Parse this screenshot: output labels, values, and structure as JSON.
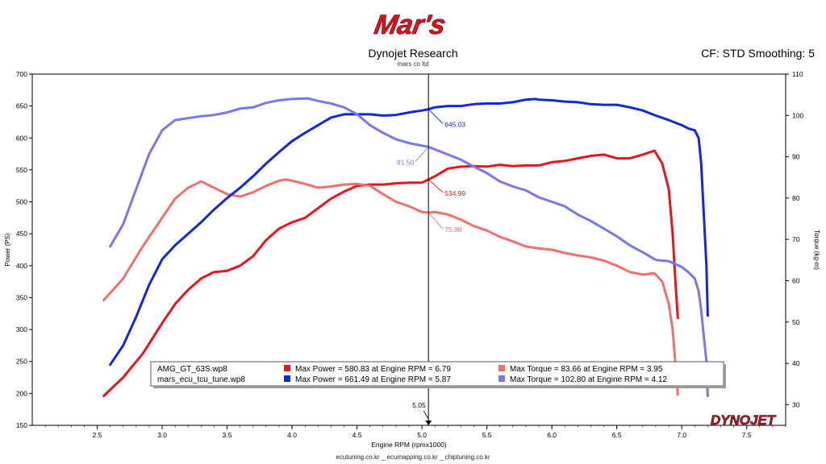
{
  "brand_logo_text": "Mar's",
  "header": {
    "title": "Dynojet Research",
    "subtitle": "mars co ltd",
    "cf_smoothing": "CF: STD Smoothing: 5"
  },
  "footer": {
    "sites": "ecutuning.co.kr _ ecumapping.co.kr _ chiptuning.co.kr"
  },
  "dynojet_logo_text": "DYNOJET",
  "colors": {
    "run1_power": "#e8141c",
    "run1_torque": "#f07070",
    "run2_power": "#1428d8",
    "run2_torque": "#7878e8"
  },
  "chart_data": {
    "type": "line",
    "xlabel": "Engine RPM (rpmx1000)",
    "ylabel_left": "Power (PS)",
    "ylabel_right": "Torque (kg-m)",
    "xlim": [
      2.0,
      7.8
    ],
    "ylim_left": [
      150,
      700
    ],
    "ylim_right": [
      25,
      110
    ],
    "x_ticks": [
      2.5,
      3.0,
      3.5,
      4.0,
      4.5,
      5.0,
      5.5,
      6.0,
      6.5,
      7.0,
      7.5
    ],
    "x_tick_labels": [
      "2.5",
      "3.0",
      "3.5",
      "4.0",
      "4.5",
      "5.0",
      "5.5",
      "6.0",
      "6.5",
      "7.0",
      "7.5"
    ],
    "y_left_ticks": [
      150,
      200,
      250,
      300,
      350,
      400,
      450,
      500,
      550,
      600,
      650,
      700
    ],
    "y_right_ticks": [
      30,
      40,
      50,
      60,
      70,
      80,
      90,
      100,
      110
    ],
    "grid": false,
    "cursor": {
      "rpm": 5.05,
      "rpm_label": "5.05",
      "readouts": [
        {
          "series": "run2_power",
          "value": "645.03"
        },
        {
          "series": "run2_torque",
          "value": "91.50"
        },
        {
          "series": "run1_power",
          "value": "534.99"
        },
        {
          "series": "run1_torque",
          "value": "75.88"
        }
      ]
    },
    "legend": {
      "placement": "bottom-center",
      "runs": [
        {
          "name": "AMG_GT_63S.wp8",
          "power_text": "Max Power = 580.83 at Engine RPM = 6.79",
          "torque_text": "Max Torque = 83.66 at Engine RPM = 3.95"
        },
        {
          "name": "mars_ecu_tcu_tune.wp8",
          "power_text": "Max Power = 661.49 at Engine RPM = 5.87",
          "torque_text": "Max Torque = 102.80 at Engine RPM = 4.12"
        }
      ]
    },
    "series": [
      {
        "key": "run1_power",
        "axis": "left",
        "x": [
          2.55,
          2.7,
          2.85,
          3.0,
          3.1,
          3.2,
          3.3,
          3.4,
          3.5,
          3.6,
          3.7,
          3.8,
          3.9,
          4.0,
          4.1,
          4.2,
          4.3,
          4.4,
          4.5,
          4.6,
          4.7,
          4.8,
          4.9,
          5.0,
          5.05,
          5.1,
          5.2,
          5.3,
          5.4,
          5.5,
          5.6,
          5.7,
          5.8,
          5.9,
          6.0,
          6.1,
          6.2,
          6.3,
          6.4,
          6.5,
          6.6,
          6.7,
          6.79,
          6.85,
          6.9,
          6.93,
          6.95,
          6.97
        ],
        "y": [
          196,
          225,
          262,
          310,
          340,
          362,
          380,
          390,
          392,
          400,
          415,
          440,
          458,
          468,
          475,
          490,
          505,
          516,
          525,
          527,
          527,
          529,
          530,
          530,
          535,
          540,
          552,
          555,
          556,
          555,
          558,
          556,
          557,
          557,
          562,
          564,
          568,
          572,
          574,
          568,
          568,
          574,
          580,
          560,
          520,
          450,
          380,
          318
        ]
      },
      {
        "key": "run1_torque",
        "axis": "left",
        "x": [
          2.55,
          2.7,
          2.85,
          3.0,
          3.1,
          3.2,
          3.3,
          3.4,
          3.5,
          3.6,
          3.7,
          3.8,
          3.9,
          3.95,
          4.0,
          4.1,
          4.2,
          4.3,
          4.4,
          4.5,
          4.6,
          4.7,
          4.8,
          4.9,
          5.0,
          5.05,
          5.1,
          5.2,
          5.3,
          5.4,
          5.5,
          5.6,
          5.7,
          5.8,
          5.9,
          6.0,
          6.1,
          6.2,
          6.3,
          6.4,
          6.5,
          6.6,
          6.7,
          6.79,
          6.85,
          6.9,
          6.93,
          6.95,
          6.97
        ],
        "y": [
          346,
          380,
          430,
          475,
          505,
          522,
          532,
          522,
          512,
          508,
          515,
          525,
          533,
          535,
          533,
          528,
          522,
          524,
          527,
          528,
          525,
          512,
          500,
          493,
          484,
          483,
          484,
          480,
          472,
          462,
          455,
          445,
          438,
          430,
          427,
          425,
          420,
          416,
          413,
          408,
          400,
          390,
          386,
          388,
          375,
          340,
          300,
          250,
          198
        ]
      },
      {
        "key": "run2_power",
        "axis": "left",
        "x": [
          2.6,
          2.7,
          2.8,
          2.9,
          3.0,
          3.1,
          3.2,
          3.3,
          3.4,
          3.5,
          3.6,
          3.7,
          3.8,
          3.9,
          4.0,
          4.1,
          4.2,
          4.3,
          4.4,
          4.5,
          4.6,
          4.7,
          4.8,
          4.9,
          5.0,
          5.05,
          5.1,
          5.2,
          5.3,
          5.4,
          5.5,
          5.6,
          5.7,
          5.8,
          5.87,
          5.9,
          6.0,
          6.1,
          6.2,
          6.3,
          6.4,
          6.5,
          6.6,
          6.7,
          6.8,
          6.9,
          7.0,
          7.05,
          7.1,
          7.13,
          7.15,
          7.17,
          7.19,
          7.2
        ],
        "y": [
          245,
          275,
          320,
          370,
          410,
          432,
          450,
          468,
          488,
          506,
          522,
          540,
          560,
          578,
          595,
          608,
          620,
          632,
          637,
          637,
          637,
          635,
          636,
          640,
          643,
          645,
          648,
          650,
          650,
          653,
          654,
          654,
          656,
          660,
          661,
          660,
          659,
          657,
          656,
          653,
          652,
          652,
          648,
          643,
          635,
          628,
          620,
          615,
          612,
          600,
          560,
          480,
          400,
          322
        ]
      },
      {
        "key": "run2_torque",
        "axis": "left",
        "x": [
          2.6,
          2.7,
          2.8,
          2.9,
          3.0,
          3.1,
          3.2,
          3.3,
          3.4,
          3.5,
          3.6,
          3.7,
          3.8,
          3.9,
          4.0,
          4.12,
          4.2,
          4.3,
          4.4,
          4.5,
          4.6,
          4.7,
          4.8,
          4.9,
          5.0,
          5.05,
          5.1,
          5.2,
          5.3,
          5.4,
          5.5,
          5.6,
          5.7,
          5.8,
          5.9,
          6.0,
          6.1,
          6.2,
          6.3,
          6.4,
          6.5,
          6.6,
          6.7,
          6.8,
          6.9,
          7.0,
          7.05,
          7.1,
          7.13,
          7.15,
          7.17,
          7.19,
          7.2
        ],
        "y": [
          430,
          465,
          520,
          575,
          612,
          628,
          631,
          634,
          636,
          640,
          646,
          648,
          655,
          659,
          661,
          662,
          658,
          654,
          648,
          637,
          620,
          608,
          598,
          592,
          588,
          586,
          582,
          574,
          566,
          555,
          545,
          532,
          524,
          518,
          507,
          500,
          493,
          480,
          470,
          458,
          446,
          432,
          421,
          409,
          407,
          398,
          390,
          380,
          360,
          330,
          290,
          250,
          196
        ]
      }
    ]
  }
}
